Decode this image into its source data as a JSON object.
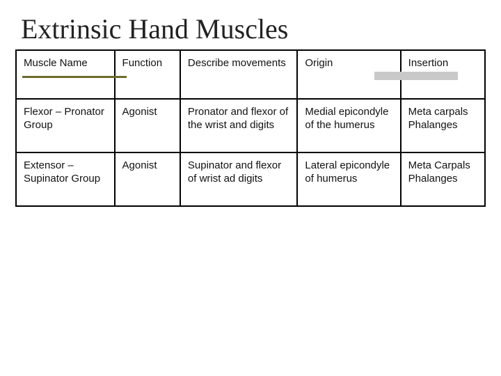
{
  "title": "Extrinsic Hand Muscles",
  "accent_olive": "#6b6b2a",
  "accent_gray": "#c9c9c9",
  "table": {
    "columns": [
      "Muscle Name",
      "Function",
      "Describe movements",
      "Origin",
      "Insertion"
    ],
    "col_widths_pct": [
      21,
      14,
      25,
      22,
      18
    ],
    "rows": [
      [
        "Flexor – Pronator Group",
        "Agonist",
        "Pronator and flexor of the wrist and digits",
        "Medial epicondyle of the humerus",
        "Meta carpals Phalanges"
      ],
      [
        "Extensor – Supinator Group",
        "Agonist",
        "Supinator and flexor of wrist ad digits",
        "Lateral epicondyle of humerus",
        "Meta Carpals Phalanges"
      ]
    ],
    "border_color": "#000000",
    "font_size": 15,
    "title_font_size": 40,
    "title_font": "Times New Roman"
  }
}
